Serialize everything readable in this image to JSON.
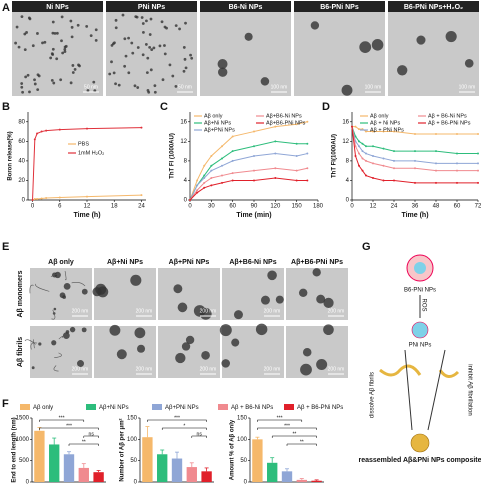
{
  "panel_labels": [
    "A",
    "B",
    "C",
    "D",
    "E",
    "F",
    "G"
  ],
  "panel_a": {
    "titles": [
      "Ni NPs",
      "PNi NPs",
      "B6-Ni NPs",
      "B6-PNi NPs",
      "B6-PNi NPs+H₂O₂"
    ],
    "scale_bars": [
      "50 nm",
      "50 nm",
      "100 nm",
      "100 nm",
      "100 nm"
    ]
  },
  "panel_e": {
    "columns": [
      "Aβ only",
      "Aβ+Ni NPs",
      "Aβ+PNi NPs",
      "Aβ+B6-Ni NPs",
      "Aβ+B6-PNi NPs"
    ],
    "rows": [
      "Aβ monomers",
      "Aβ fibrils"
    ],
    "scale_bars": [
      [
        "200 nm",
        "200 nm",
        "200 nm",
        "200 nm",
        "200 nm"
      ],
      [
        "200 nm",
        "200 nm",
        "200 nm",
        "200 nm",
        "200 nm"
      ]
    ]
  },
  "panel_f_legend": {
    "names": [
      "Aβ only",
      "Aβ+Ni NPs",
      "Aβ+PNi NPs",
      "Aβ + B6-Ni NPs",
      "Aβ + B6-PNi NPs"
    ],
    "colors": [
      "#f5b86b",
      "#2dbd7c",
      "#8fa6d6",
      "#f08a8f",
      "#e0202a"
    ]
  },
  "panel_g": {
    "top": "B6-PNi NPs",
    "ros": "ROS",
    "middle": "PNi NPs",
    "left": "dissolve Aβ fibrils",
    "right": "inhibit Aβ fibrillation",
    "bottom": "reassembled Aβ&PNi NPs composite"
  },
  "chart_data": [
    {
      "type": "line",
      "ylabel": "Boron release(%)",
      "xlabel": "Time (h)",
      "xlim": [
        -1,
        25
      ],
      "ylim": [
        0,
        90
      ],
      "xticks": [
        0,
        6,
        12,
        18,
        24
      ],
      "yticks": [
        0,
        20,
        40,
        60,
        80
      ],
      "legend": "right",
      "x": [
        0,
        0.5,
        1,
        2,
        3,
        6,
        12,
        24
      ],
      "series": [
        {
          "name": "PBS",
          "color": "#f5b86b",
          "values": [
            0,
            1,
            1,
            1.5,
            2,
            2.5,
            3.5,
            5
          ]
        },
        {
          "name": "1mM H₂O₂",
          "color": "#e0303a",
          "values": [
            0,
            62,
            68,
            70,
            71,
            72,
            73,
            74
          ]
        }
      ]
    },
    {
      "type": "line",
      "ylabel": "ThT FI (1000AU)",
      "xlabel": "Time (min)",
      "xlim": [
        0,
        180
      ],
      "ylim": [
        0,
        18
      ],
      "xticks": [
        0,
        30,
        60,
        90,
        120,
        150,
        180
      ],
      "yticks": [
        0,
        4,
        8,
        12,
        16
      ],
      "legend": "upper left",
      "x": [
        0,
        10,
        20,
        30,
        45,
        60,
        90,
        120,
        150,
        165
      ],
      "series": [
        {
          "name": "Aβ only",
          "color": "#f5b86b",
          "values": [
            0,
            4,
            7,
            9,
            11,
            13,
            14,
            15,
            15.5,
            16
          ]
        },
        {
          "name": "Aβ+Ni NPs",
          "color": "#2dbd7c",
          "values": [
            0,
            3,
            5,
            7,
            8.5,
            10,
            11,
            12,
            11.5,
            11.5
          ]
        },
        {
          "name": "Aβ+PNi NPs",
          "color": "#8fa6d6",
          "values": [
            0,
            3,
            4.5,
            6,
            7,
            8,
            9,
            9.5,
            9,
            9.5
          ]
        },
        {
          "name": "Aβ+B6-Ni NPs",
          "color": "#f08a8f",
          "values": [
            0,
            2,
            3.5,
            4.5,
            5,
            5.5,
            6,
            6.5,
            6,
            6.5
          ]
        },
        {
          "name": "Aβ+B6-PNi NPs",
          "color": "#e0202a",
          "values": [
            0,
            1.5,
            2.5,
            3,
            3.5,
            4,
            4,
            4.5,
            4,
            4
          ]
        }
      ]
    },
    {
      "type": "line",
      "ylabel": "ThT FI(1000AU)",
      "xlabel": "Time (h)",
      "xlim": [
        0,
        72
      ],
      "ylim": [
        0,
        18
      ],
      "xticks": [
        0,
        12,
        24,
        36,
        48,
        60,
        72
      ],
      "yticks": [
        0,
        4,
        8,
        12,
        16
      ],
      "legend": "upper right",
      "x": [
        0,
        2,
        4,
        6,
        8,
        12,
        18,
        24,
        36,
        48,
        60,
        72
      ],
      "series": [
        {
          "name": "Aβ only",
          "color": "#f5b86b",
          "values": [
            15,
            15,
            14.5,
            14.5,
            14,
            14,
            14,
            14,
            13.5,
            13.5,
            13.5,
            13.5
          ]
        },
        {
          "name": "Aβ + Ni NPs",
          "color": "#2dbd7c",
          "values": [
            15,
            13,
            12,
            11.5,
            11,
            11,
            10.5,
            10,
            10,
            10,
            9.5,
            9.5
          ]
        },
        {
          "name": "Aβ + PNi NPs",
          "color": "#8fa6d6",
          "values": [
            15,
            12,
            11,
            10,
            9.5,
            9,
            8.5,
            8,
            8,
            7.5,
            7.5,
            7.5
          ]
        },
        {
          "name": "Aβ + B6-Ni NPs",
          "color": "#f08a8f",
          "values": [
            15,
            11,
            9.5,
            8.5,
            8,
            7.5,
            7,
            6.5,
            6.5,
            6,
            6,
            6
          ]
        },
        {
          "name": "Aβ + B6-PNi NPs",
          "color": "#e0202a",
          "values": [
            15,
            9,
            7,
            6,
            5,
            4.5,
            4,
            4,
            3.5,
            3.5,
            3.5,
            3.5
          ]
        }
      ]
    },
    {
      "type": "bar",
      "ylabel": "End to end length (nm)",
      "ylim": [
        0,
        1500
      ],
      "yticks": [
        0,
        500,
        1000,
        1500
      ],
      "values": [
        1200,
        880,
        650,
        330,
        230
      ],
      "errors": [
        80,
        150,
        60,
        100,
        40
      ],
      "colors": [
        "#f5b86b",
        "#2dbd7c",
        "#8fa6d6",
        "#f08a8f",
        "#e0202a"
      ],
      "annotations": [
        "***",
        "***",
        "ns",
        "**"
      ]
    },
    {
      "type": "bar",
      "ylabel": "Number of Aβ per μm²",
      "ylim": [
        0,
        150
      ],
      "yticks": [
        0,
        50,
        100,
        150
      ],
      "values": [
        105,
        65,
        55,
        35,
        25
      ],
      "errors": [
        25,
        10,
        15,
        10,
        8
      ],
      "colors": [
        "#f5b86b",
        "#2dbd7c",
        "#8fa6d6",
        "#f08a8f",
        "#e0202a"
      ],
      "annotations": [
        "***",
        "*",
        "ns"
      ]
    },
    {
      "type": "bar",
      "ylabel": "Amount % of Aβ only",
      "ylim": [
        0,
        150
      ],
      "yticks": [
        0,
        50,
        100,
        150
      ],
      "values": [
        100,
        45,
        25,
        5,
        3
      ],
      "errors": [
        5,
        12,
        6,
        3,
        2
      ],
      "colors": [
        "#f5b86b",
        "#2dbd7c",
        "#8fa6d6",
        "#f08a8f",
        "#e0202a"
      ],
      "annotations": [
        "***",
        "***",
        "**",
        "**"
      ]
    }
  ]
}
